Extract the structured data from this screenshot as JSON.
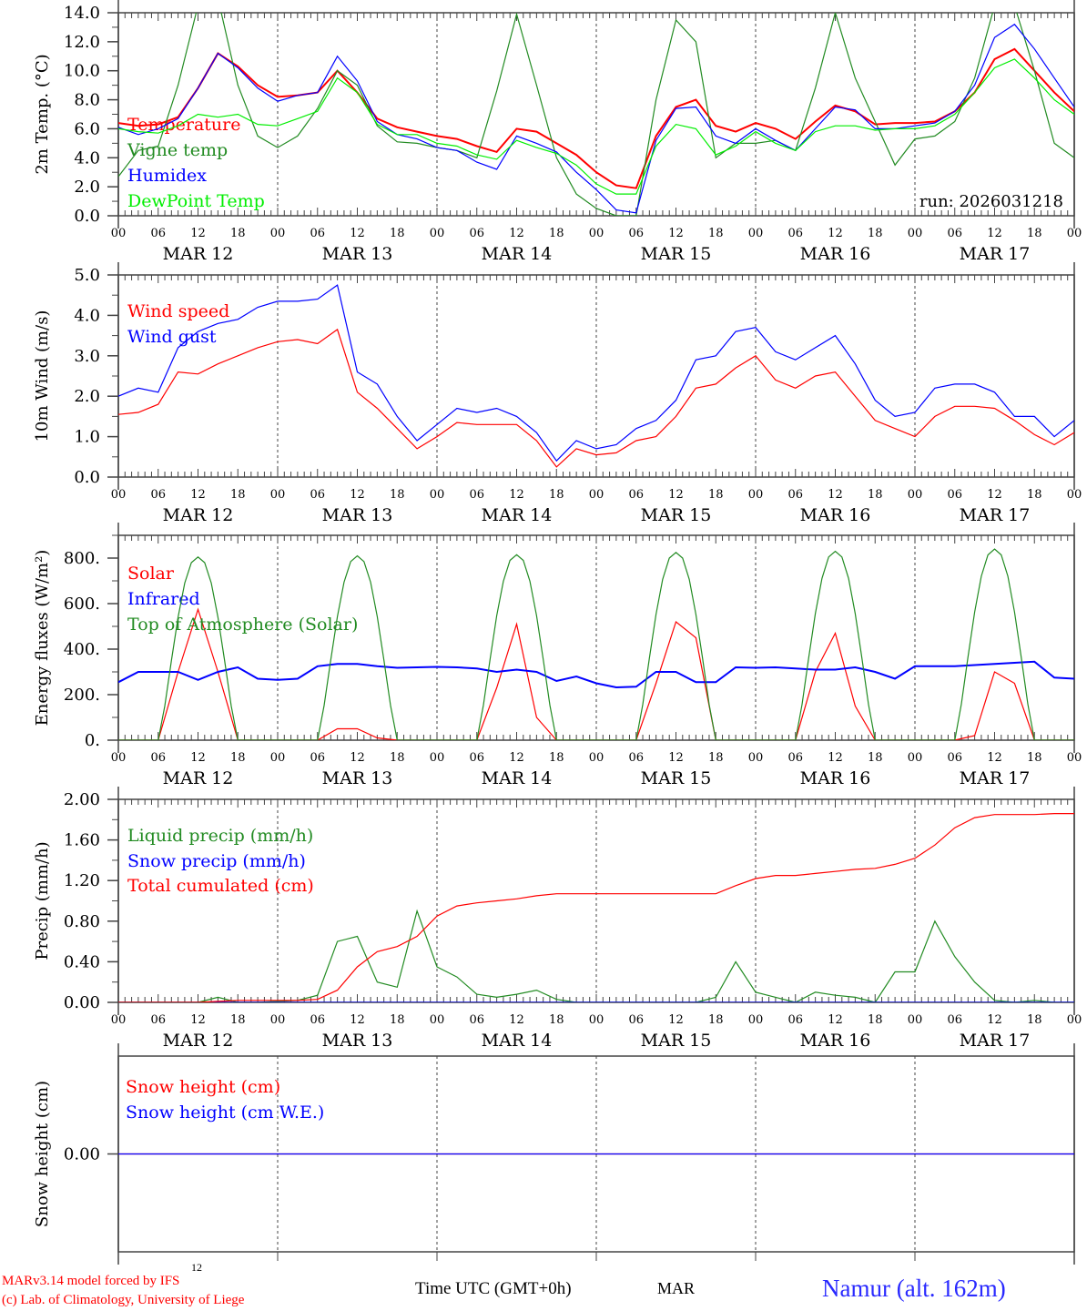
{
  "chart_data": [
    {
      "type": "line",
      "ylabel": "2m Temp. (°C)",
      "ylim": [
        0,
        14
      ],
      "yticks": [
        0,
        2,
        4,
        6,
        8,
        10,
        12,
        14
      ],
      "ytick_labels": [
        "0.0",
        "2.0",
        "4.0",
        "6.0",
        "8.0",
        "10.0",
        "12.0",
        "14.0"
      ],
      "yminor": 1,
      "annotation": "run: 2026031218",
      "series": [
        {
          "name": "Temperature",
          "color": "#ff0000",
          "x0": 0,
          "dx": 3,
          "values": [
            6.4,
            6.2,
            6.3,
            6.8,
            8.8,
            11.2,
            10.3,
            9.0,
            8.2,
            8.3,
            8.5,
            10.0,
            8.5,
            6.7,
            6.1,
            5.8,
            5.5,
            5.3,
            4.8,
            4.4,
            6.0,
            5.8,
            5.0,
            4.2,
            3.0,
            2.1,
            1.9,
            5.5,
            7.5,
            8.0,
            6.2,
            5.8,
            6.4,
            6.0,
            5.3,
            6.5,
            7.6,
            7.2,
            6.3,
            6.4,
            6.4,
            6.5,
            7.2,
            8.5,
            10.8,
            11.5,
            10.0,
            8.5,
            7.2
          ]
        },
        {
          "name": "Vigne temp",
          "color": "#228b22",
          "x0": 0,
          "dx": 3,
          "values": [
            2.7,
            4.5,
            4.8,
            9.0,
            14.5,
            15.0,
            9.0,
            5.5,
            4.7,
            5.5,
            7.4,
            10.0,
            9.0,
            6.2,
            5.1,
            5.0,
            4.7,
            4.5,
            4.0,
            8.6,
            13.9,
            9.0,
            4.0,
            1.5,
            0.5,
            0.0,
            0.0,
            8.0,
            13.5,
            12.0,
            4.0,
            5.0,
            5.0,
            5.2,
            4.5,
            8.8,
            14.0,
            9.5,
            6.5,
            3.5,
            5.3,
            5.5,
            6.5,
            9.5,
            14.5,
            14.5,
            10.0,
            5.0,
            4.0
          ]
        },
        {
          "name": "Humidex",
          "color": "#0000ff",
          "x0": 0,
          "dx": 3,
          "values": [
            6.1,
            5.6,
            6.0,
            6.7,
            8.8,
            11.2,
            10.2,
            8.8,
            7.9,
            8.3,
            8.5,
            11.0,
            9.3,
            6.5,
            5.6,
            5.3,
            4.7,
            4.5,
            3.7,
            3.2,
            5.5,
            5.0,
            4.4,
            3.0,
            1.8,
            0.4,
            0.2,
            5.2,
            7.4,
            7.5,
            5.5,
            5.0,
            6.0,
            5.2,
            4.5,
            6.0,
            7.5,
            7.3,
            6.0,
            6.0,
            6.2,
            6.4,
            7.2,
            9.0,
            12.3,
            13.2,
            11.5,
            9.5,
            7.5
          ]
        },
        {
          "name": "DewPoint Temp",
          "color": "#00ee00",
          "x0": 0,
          "dx": 3,
          "values": [
            6.0,
            5.8,
            5.7,
            6.2,
            7.0,
            6.8,
            7.0,
            6.3,
            6.2,
            6.7,
            7.2,
            9.5,
            8.5,
            6.3,
            5.6,
            5.6,
            5.0,
            4.8,
            4.2,
            3.9,
            5.2,
            4.7,
            4.3,
            3.5,
            2.2,
            1.5,
            1.5,
            4.8,
            6.3,
            6.0,
            4.2,
            4.8,
            5.8,
            5.0,
            4.5,
            5.8,
            6.2,
            6.2,
            5.9,
            6.0,
            6.0,
            6.2,
            7.0,
            8.5,
            10.2,
            10.8,
            9.5,
            8.0,
            7.0
          ]
        }
      ]
    },
    {
      "type": "line",
      "ylabel": "10m Wind (m/s)",
      "ylim": [
        0,
        5
      ],
      "yticks": [
        0,
        1,
        2,
        3,
        4,
        5
      ],
      "ytick_labels": [
        "0.0",
        "1.0",
        "2.0",
        "3.0",
        "4.0",
        "5.0"
      ],
      "yminor": 0.5,
      "series": [
        {
          "name": "Wind speed",
          "color": "#ff0000",
          "x0": 0,
          "dx": 3,
          "values": [
            1.55,
            1.6,
            1.8,
            2.6,
            2.55,
            2.8,
            3.0,
            3.2,
            3.35,
            3.4,
            3.3,
            3.65,
            2.1,
            1.7,
            1.2,
            0.7,
            1.0,
            1.35,
            1.3,
            1.3,
            1.3,
            0.9,
            0.25,
            0.7,
            0.55,
            0.6,
            0.9,
            1.0,
            1.5,
            2.2,
            2.3,
            2.7,
            3.0,
            2.4,
            2.2,
            2.5,
            2.6,
            2.0,
            1.4,
            1.2,
            1.0,
            1.5,
            1.75,
            1.75,
            1.7,
            1.4,
            1.05,
            0.8,
            1.1
          ]
        },
        {
          "name": "Wind gust",
          "color": "#0000ff",
          "x0": 0,
          "dx": 3,
          "values": [
            2.0,
            2.2,
            2.1,
            3.2,
            3.6,
            3.8,
            3.9,
            4.2,
            4.35,
            4.35,
            4.4,
            4.75,
            2.6,
            2.3,
            1.5,
            0.9,
            1.3,
            1.7,
            1.6,
            1.7,
            1.5,
            1.1,
            0.4,
            0.9,
            0.7,
            0.8,
            1.2,
            1.4,
            1.9,
            2.9,
            3.0,
            3.6,
            3.7,
            3.1,
            2.9,
            3.2,
            3.5,
            2.8,
            1.9,
            1.5,
            1.6,
            2.2,
            2.3,
            2.3,
            2.1,
            1.5,
            1.5,
            1.0,
            1.4
          ]
        }
      ]
    },
    {
      "type": "line",
      "ylabel": "Energy fluxes (W/m²)",
      "ylim": [
        0,
        900
      ],
      "yticks": [
        0,
        200,
        400,
        600,
        800
      ],
      "ytick_labels": [
        "0.",
        "200.",
        "400.",
        "600.",
        "800."
      ],
      "yminor": 100,
      "series": [
        {
          "name": "Solar",
          "color": "#ff0000",
          "x0": 0,
          "dx": 3,
          "values": [
            0,
            0,
            0,
            300,
            575,
            300,
            0,
            0,
            0,
            0,
            0,
            50,
            50,
            10,
            0,
            0,
            0,
            0,
            0,
            230,
            510,
            100,
            0,
            0,
            0,
            0,
            0,
            250,
            520,
            450,
            0,
            0,
            0,
            0,
            0,
            300,
            470,
            150,
            0,
            0,
            0,
            0,
            0,
            20,
            300,
            250,
            0,
            0,
            0
          ]
        },
        {
          "name": "Infrared",
          "color": "#0000ff",
          "x0": 0,
          "dx": 3,
          "values": [
            255,
            300,
            300,
            300,
            265,
            300,
            320,
            270,
            265,
            270,
            325,
            335,
            335,
            325,
            318,
            320,
            322,
            320,
            315,
            300,
            310,
            300,
            260,
            280,
            250,
            232,
            235,
            300,
            300,
            255,
            255,
            320,
            318,
            320,
            315,
            310,
            310,
            320,
            300,
            270,
            325,
            325,
            325,
            330,
            335,
            340,
            345,
            275,
            270
          ]
        },
        {
          "name": "Top of Atmosphere (Solar)",
          "color": "#228b22",
          "x0": 0,
          "dx": 1,
          "values": [
            0,
            0,
            0,
            0,
            0,
            0,
            0,
            150,
            350,
            540,
            690,
            780,
            805,
            780,
            690,
            540,
            350,
            150,
            0,
            0,
            0,
            0,
            0,
            0,
            0,
            0,
            0,
            0,
            0,
            0,
            0,
            152,
            352,
            543,
            694,
            785,
            810,
            785,
            694,
            543,
            352,
            152,
            0,
            0,
            0,
            0,
            0,
            0,
            0,
            0,
            0,
            0,
            0,
            0,
            0,
            154,
            355,
            547,
            698,
            790,
            815,
            790,
            698,
            547,
            355,
            154,
            0,
            0,
            0,
            0,
            0,
            0,
            0,
            0,
            0,
            0,
            0,
            0,
            0,
            156,
            360,
            553,
            707,
            800,
            825,
            800,
            707,
            553,
            360,
            156,
            0,
            0,
            0,
            0,
            0,
            0,
            0,
            0,
            0,
            0,
            0,
            0,
            0,
            157,
            362,
            556,
            711,
            805,
            830,
            805,
            711,
            556,
            362,
            157,
            0,
            0,
            0,
            0,
            0,
            0,
            0,
            0,
            0,
            0,
            0,
            0,
            0,
            159,
            366,
            563,
            720,
            814,
            840,
            814,
            720,
            563,
            366,
            159,
            0,
            0,
            0,
            0,
            0,
            0,
            0
          ]
        }
      ]
    },
    {
      "type": "line",
      "ylabel": "Precip (mm/h)",
      "ylim": [
        0,
        2
      ],
      "yticks": [
        0,
        0.4,
        0.8,
        1.2,
        1.6,
        2.0
      ],
      "ytick_labels": [
        "0.00",
        "0.40",
        "0.80",
        "1.20",
        "1.60",
        "2.00"
      ],
      "yminor": 0.2,
      "series": [
        {
          "name": "Liquid precip (mm/h)",
          "color": "#228b22",
          "x0": 0,
          "dx": 3,
          "values": [
            0,
            0,
            0,
            0,
            0,
            0.05,
            0,
            0,
            0.01,
            0.02,
            0.07,
            0.6,
            0.65,
            0.2,
            0.15,
            0.9,
            0.35,
            0.25,
            0.08,
            0.05,
            0.08,
            0.12,
            0.03,
            0,
            0,
            0,
            0,
            0,
            0,
            0,
            0.05,
            0.4,
            0.1,
            0.05,
            0,
            0.1,
            0.07,
            0.05,
            0,
            0.3,
            0.3,
            0.8,
            0.45,
            0.2,
            0.02,
            0,
            0.02,
            0,
            0
          ]
        },
        {
          "name": "Snow precip (mm/h)",
          "color": "#0000ff",
          "x0": 0,
          "dx": 3,
          "values": [
            0,
            0,
            0,
            0,
            0,
            0,
            0,
            0,
            0,
            0,
            0,
            0,
            0,
            0,
            0,
            0,
            0,
            0,
            0,
            0,
            0,
            0,
            0,
            0,
            0,
            0,
            0,
            0,
            0,
            0,
            0,
            0,
            0,
            0,
            0,
            0,
            0,
            0,
            0,
            0,
            0,
            0,
            0,
            0,
            0,
            0,
            0,
            0,
            0
          ]
        },
        {
          "name": "Total cumulated (cm)",
          "color": "#ff0000",
          "x0": 0,
          "dx": 3,
          "values": [
            0,
            0,
            0,
            0,
            0,
            0.01,
            0.02,
            0.02,
            0.02,
            0.02,
            0.03,
            0.12,
            0.35,
            0.5,
            0.55,
            0.65,
            0.85,
            0.95,
            0.98,
            1.0,
            1.02,
            1.05,
            1.07,
            1.07,
            1.07,
            1.07,
            1.07,
            1.07,
            1.07,
            1.07,
            1.07,
            1.15,
            1.22,
            1.25,
            1.25,
            1.27,
            1.29,
            1.31,
            1.32,
            1.36,
            1.42,
            1.55,
            1.72,
            1.82,
            1.85,
            1.85,
            1.85,
            1.86,
            1.86
          ]
        }
      ]
    },
    {
      "type": "line",
      "ylabel": "Snow height (cm)",
      "ylim": [
        -1,
        1
      ],
      "yticks": [
        0
      ],
      "ytick_labels": [
        "0.00"
      ],
      "yminor": 0,
      "series": [
        {
          "name": "Snow height (cm)",
          "color": "#ff0000",
          "x0": 0,
          "dx": 144,
          "values": [
            0,
            0
          ]
        },
        {
          "name": "Snow height (cm W.E.)",
          "color": "#0000ff",
          "x0": 0,
          "dx": 144,
          "values": [
            0,
            0
          ]
        }
      ]
    }
  ],
  "x_axis": {
    "hour_labels": [
      "00",
      "06",
      "12",
      "18",
      "00",
      "06",
      "12",
      "18",
      "00",
      "06",
      "12",
      "18",
      "00",
      "06",
      "12",
      "18",
      "00",
      "06",
      "12",
      "18",
      "00",
      "06",
      "12",
      "18",
      "00"
    ],
    "date_labels": [
      "MAR 12",
      "MAR 13",
      "MAR 14",
      "MAR 15",
      "MAR 16",
      "MAR 17"
    ],
    "xlabel": "Time UTC (GMT+0h)",
    "range_hours": [
      0,
      144
    ]
  },
  "footer": {
    "small_label": "12",
    "model_line": "MARv3.14 model forced by IFS",
    "credit_line": "(c) Lab. of Climatology, University of Liege",
    "xlabel": "Time UTC (GMT+0h)",
    "month": "MAR",
    "station": "Namur (alt. 162m)"
  }
}
